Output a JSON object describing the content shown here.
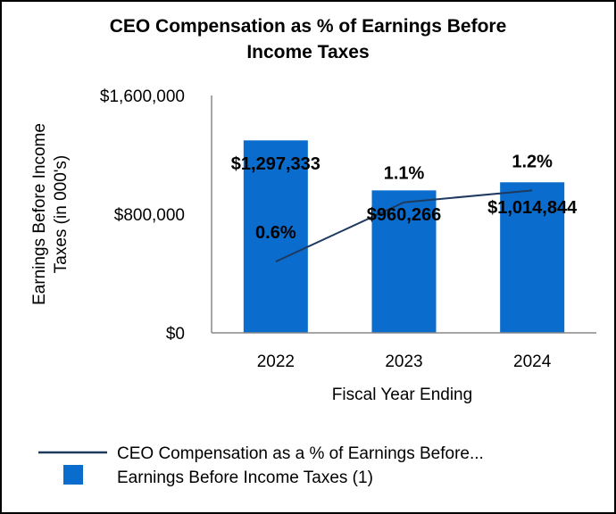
{
  "chart_data": {
    "type": "bar",
    "title_lines": [
      "CEO Compensation as % of Earnings Before",
      "Income Taxes"
    ],
    "categories": [
      "2022",
      "2023",
      "2024"
    ],
    "xlabel": "Fiscal Year Ending",
    "ylabel_lines": [
      "Earnings Before Income",
      "Taxes (in 000's)"
    ],
    "ylim": [
      0,
      1600000
    ],
    "yticks": [
      0,
      800000,
      1600000
    ],
    "ytick_labels": [
      "$0",
      "$800,000",
      "$1,600,000"
    ],
    "grid": false,
    "legend_position": "bottom",
    "series": [
      {
        "name": "Earnings Before Income Taxes (1)",
        "kind": "bar",
        "color": "#0a6ccc",
        "values": [
          1297333,
          960266,
          1014844
        ],
        "labels": [
          "$1,297,333",
          "$960,266",
          "$1,014,844"
        ]
      },
      {
        "name": "CEO Compensation as a % of Earnings Before...",
        "kind": "line",
        "color": "#1f3a5f",
        "values": [
          0.6,
          1.1,
          1.2
        ],
        "labels": [
          "0.6%",
          "1.1%",
          "1.2%"
        ],
        "secondary_axis_range": [
          0,
          2.0
        ]
      }
    ]
  }
}
